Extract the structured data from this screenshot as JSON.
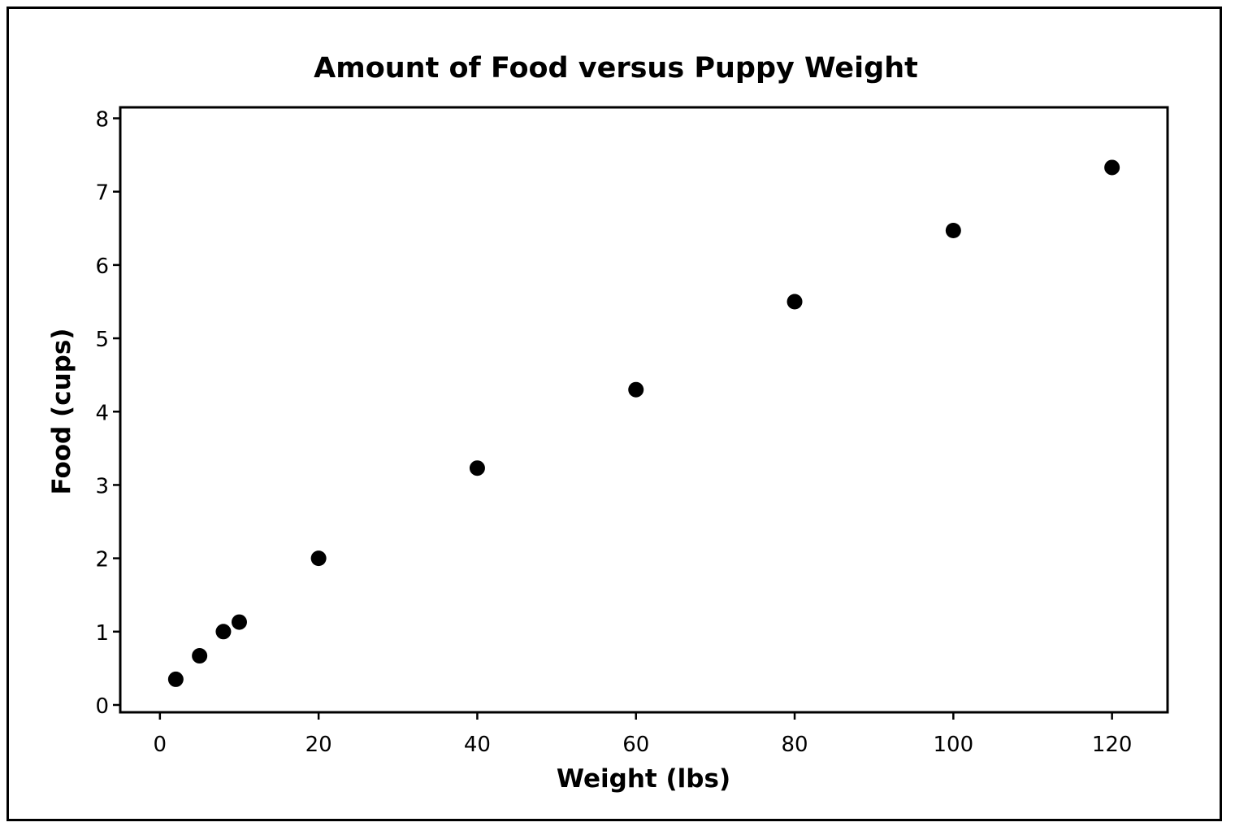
{
  "chart_data": {
    "type": "scatter",
    "title": "Amount of Food versus Puppy Weight",
    "xlabel": "Weight (lbs)",
    "ylabel": "Food (cups)",
    "xlim": [
      -5,
      127
    ],
    "ylim": [
      -0.1,
      8.15
    ],
    "xticks": [
      0,
      20,
      40,
      60,
      80,
      100,
      120
    ],
    "yticks": [
      0,
      1,
      2,
      3,
      4,
      5,
      6,
      7,
      8
    ],
    "grid": false,
    "legend": "none",
    "marker_color": "#000000",
    "points": [
      {
        "x": 2,
        "y": 0.35
      },
      {
        "x": 5,
        "y": 0.67
      },
      {
        "x": 8,
        "y": 1.0
      },
      {
        "x": 10,
        "y": 1.13
      },
      {
        "x": 20,
        "y": 2.0
      },
      {
        "x": 40,
        "y": 3.23
      },
      {
        "x": 60,
        "y": 4.3
      },
      {
        "x": 80,
        "y": 5.5
      },
      {
        "x": 100,
        "y": 6.47
      },
      {
        "x": 120,
        "y": 7.33
      }
    ]
  }
}
